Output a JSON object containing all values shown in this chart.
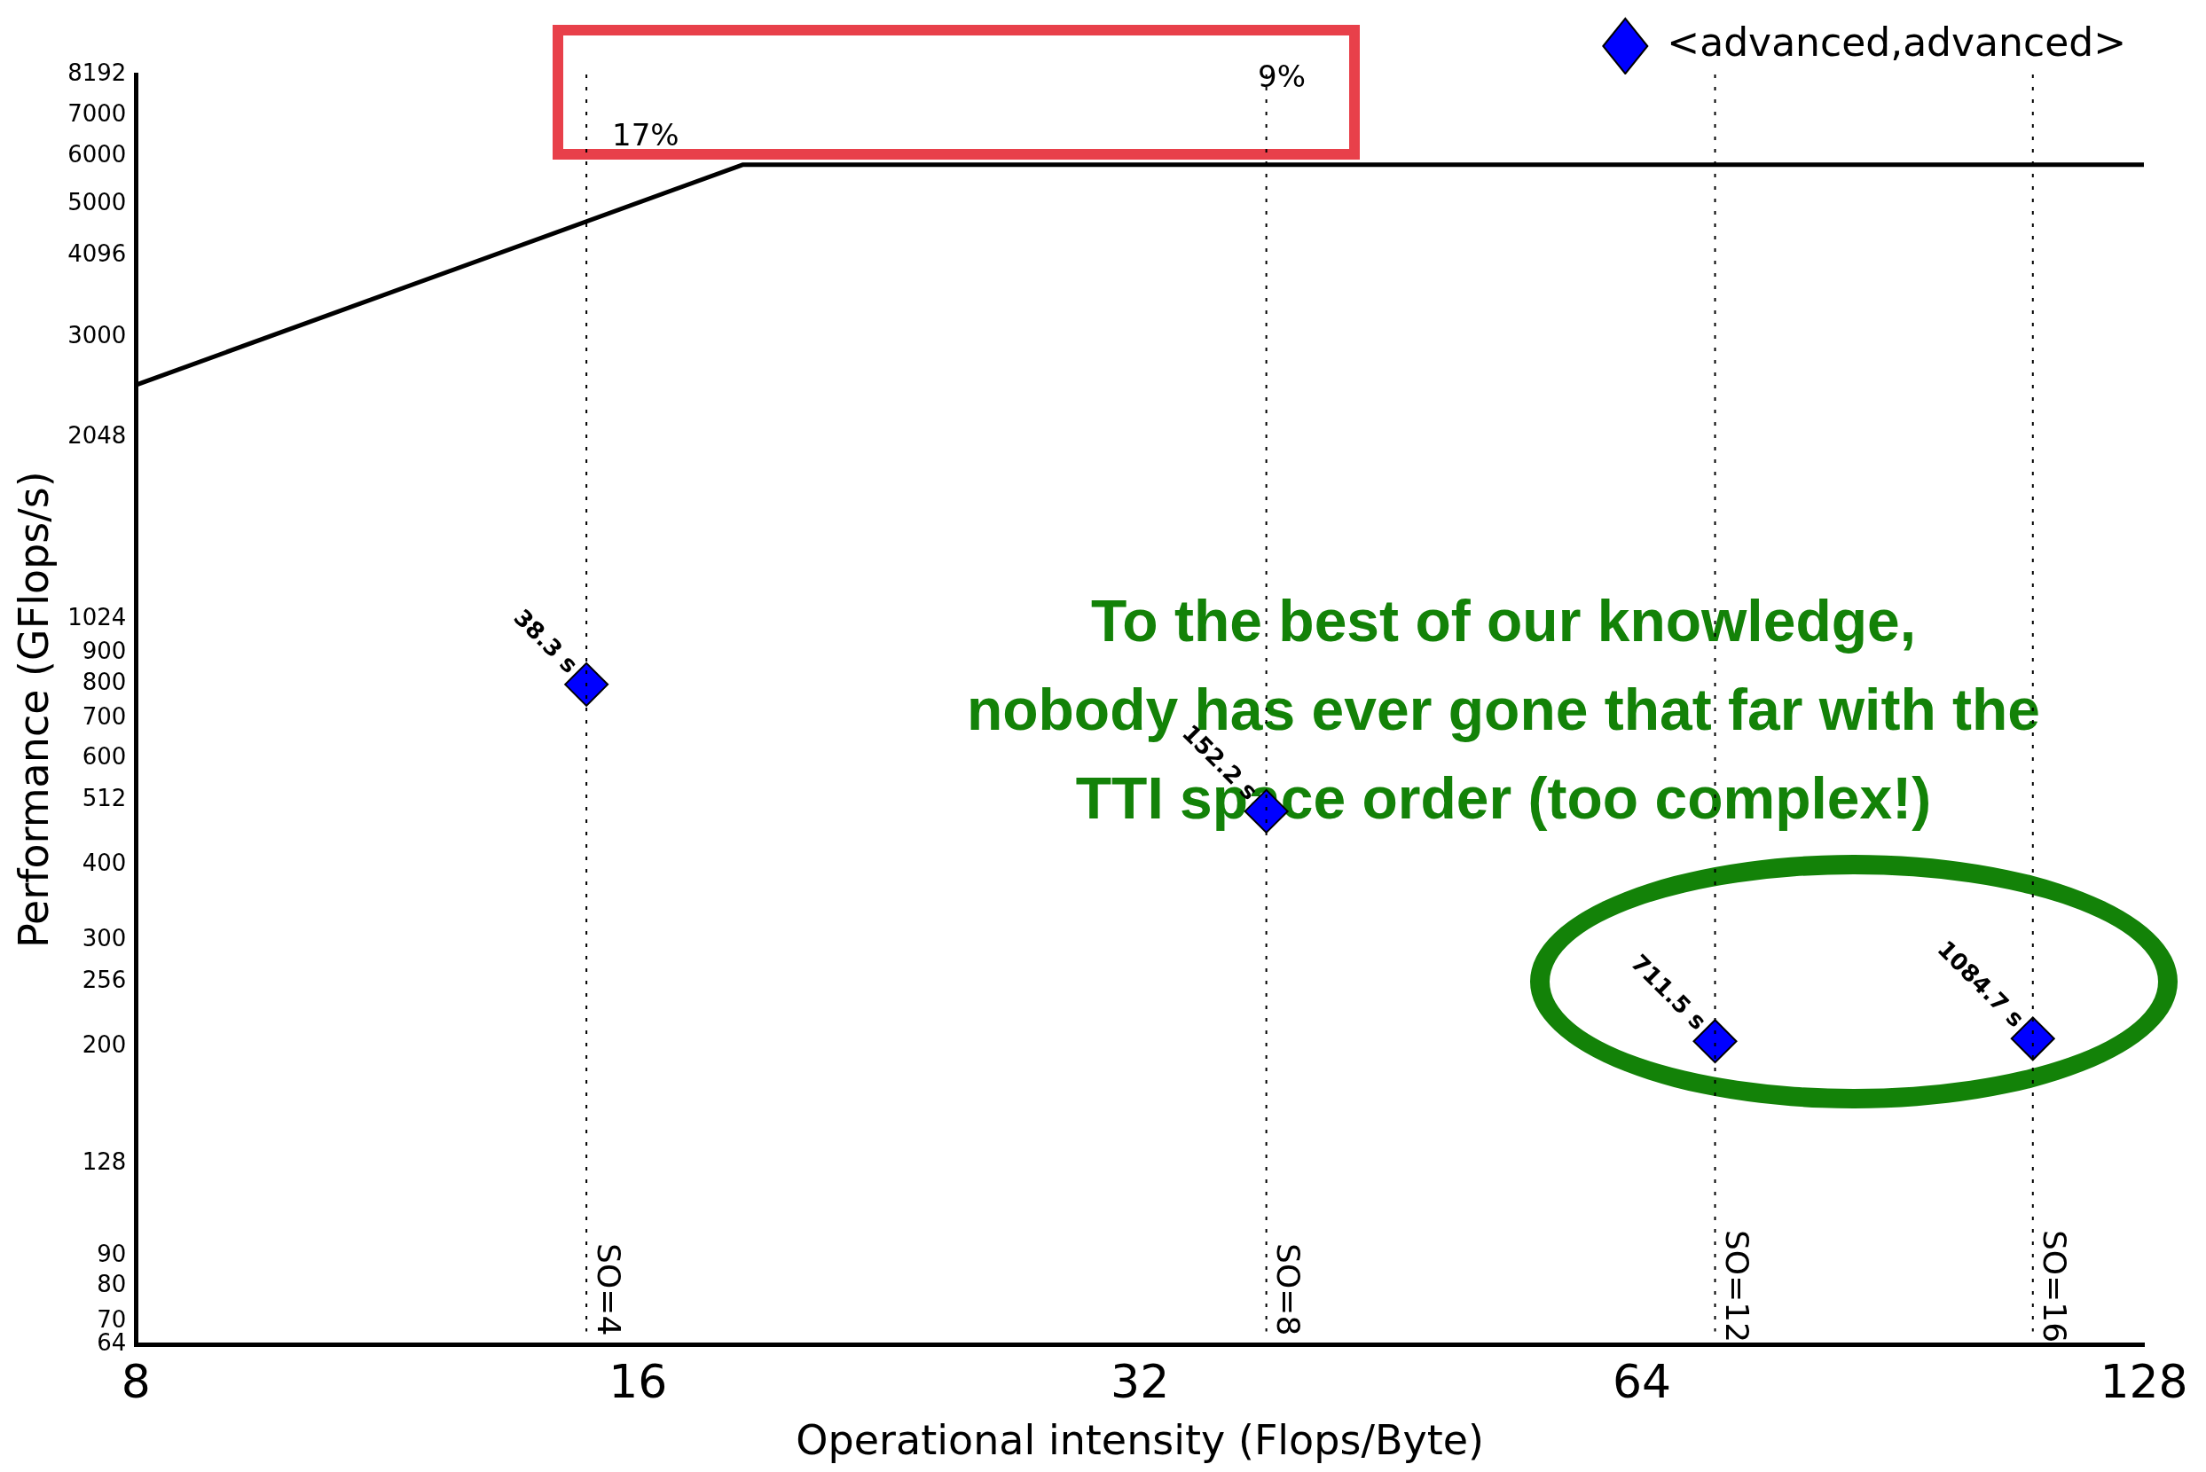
{
  "chart_data": {
    "type": "scatter",
    "xlabel": "Operational intensity (Flops/Byte)",
    "ylabel": "Performance (GFlops/s)",
    "log": "xy",
    "xlim": [
      8,
      128
    ],
    "xticks": [
      8,
      16,
      32,
      64,
      128
    ],
    "ylim": [
      64,
      8192
    ],
    "yticks": [
      64,
      70,
      80,
      90,
      128,
      200,
      256,
      300,
      400,
      512,
      600,
      700,
      800,
      900,
      1024,
      2048,
      3000,
      4096,
      5000,
      6000,
      7000,
      8192
    ],
    "grid": false,
    "legend": "top right",
    "marker": "diamond",
    "series": [
      {
        "name": "<advanced,advanced>",
        "color": "#0000ff",
        "x": [
          14.9,
          38.1,
          70.8,
          109.8
        ],
        "values": [
          797,
          491,
          204,
          206
        ]
      },
      {
        "type": "line",
        "color": "#000000",
        "x": [
          8,
          18.5,
          128
        ],
        "values": [
          2503,
          5805,
          5805
        ],
        "marker": "none",
        "line_style": "solid"
      }
    ],
    "ref_lines": [
      {
        "axis": "x",
        "value": 14.9,
        "line_style": "dotted",
        "color": "#000000"
      },
      {
        "axis": "x",
        "value": 38.1,
        "line_style": "dotted",
        "color": "#000000"
      },
      {
        "axis": "x",
        "value": 70.8,
        "line_style": "dotted",
        "color": "#000000"
      },
      {
        "axis": "x",
        "value": 109.8,
        "line_style": "dotted",
        "color": "#000000"
      }
    ],
    "annotations": [
      "17%",
      "9%",
      "To the best of our knowledge,\nnobody has ever gone that far with the\nTTI space order (too complex!)",
      {
        "text": "38.3 s",
        "x": 14.9,
        "y": 797
      },
      {
        "text": "152.2 s",
        "x": 38.1,
        "y": 491
      },
      {
        "text": "711.5 s",
        "x": 70.8,
        "y": 204
      },
      {
        "text": "1084.7 s",
        "x": 109.8,
        "y": 206
      },
      {
        "text": "SO=4",
        "x": 14.9,
        "y": 79
      },
      {
        "text": "SO=8",
        "x": 38.1,
        "y": 79
      },
      {
        "text": "SO=12",
        "x": 70.8,
        "y": 80
      },
      {
        "text": "SO=16",
        "x": 109.8,
        "y": 80
      }
    ]
  }
}
